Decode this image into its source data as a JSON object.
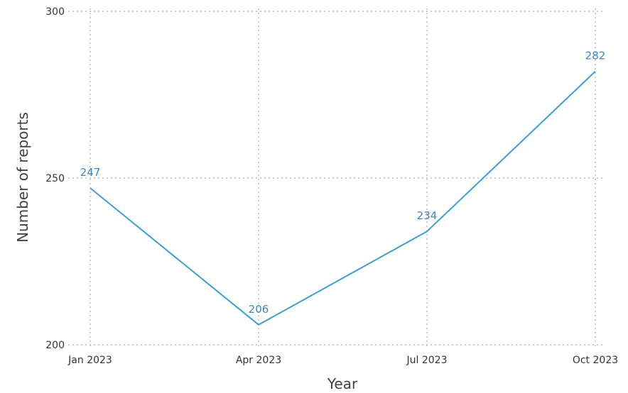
{
  "chart_data": {
    "type": "line",
    "title": "",
    "xlabel": "Year",
    "ylabel": "Number of reports",
    "categories": [
      "Jan 2023",
      "Apr 2023",
      "Jul 2023",
      "Oct 2023"
    ],
    "series": [
      {
        "values": [
          247,
          206,
          234,
          282
        ],
        "color": "#3b9fd1"
      }
    ],
    "data_labels": [
      "247",
      "206",
      "234",
      "282"
    ],
    "ylim": [
      200,
      300
    ],
    "yticks": [
      200,
      250,
      300
    ],
    "grid": true,
    "label_color": "#3a86c0"
  }
}
